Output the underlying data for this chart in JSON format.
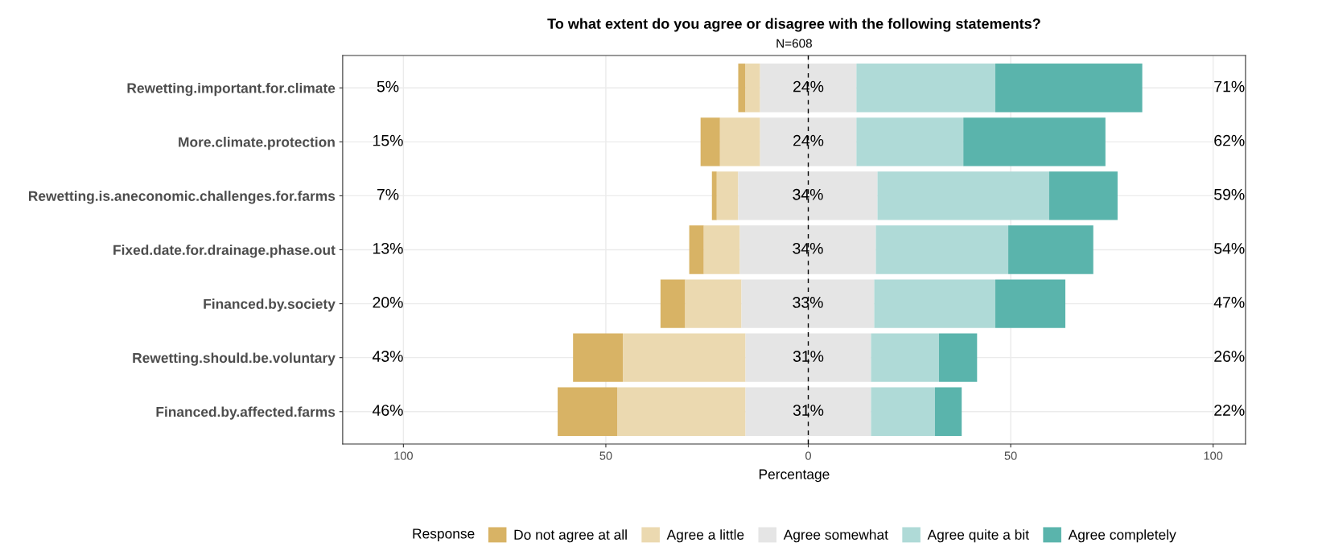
{
  "chart_data": {
    "type": "bar",
    "orientation": "horizontal",
    "title": "To what extent do you agree or disagree with the following statements?",
    "subtitle": "N=608",
    "xlabel": "Percentage",
    "legend_title": "Response",
    "legend": "bottom",
    "grid": true,
    "categories": [
      "Rewetting.important.for.climate",
      "More.climate.protection",
      "Rewetting.is.aneconomic.challenges.for.farms",
      "Fixed.date.for.drainage.phase.out",
      "Financed.by.society",
      "Rewetting.should.be.voluntary",
      "Financed.by.affected.farms"
    ],
    "series": [
      {
        "name": "Do not agree at all",
        "color": "#d8b365",
        "base": [
          -17.3,
          -26.6,
          -23.8,
          -29.4,
          -36.5,
          -58.1,
          -61.9
        ],
        "values": [
          1.8,
          4.8,
          1.2,
          3.6,
          6.1,
          12.3,
          14.7
        ]
      },
      {
        "name": "Agree a little",
        "color": "#ebd9b0",
        "base": [
          -15.5,
          -21.8,
          -22.6,
          -25.8,
          -30.4,
          -45.8,
          -47.2
        ],
        "values": [
          3.6,
          9.9,
          5.3,
          8.9,
          13.9,
          30.3,
          31.7
        ]
      },
      {
        "name": "Agree somewhat",
        "color": "#e5e5e5",
        "base": [
          -11.9,
          -11.9,
          -17.3,
          -16.9,
          -16.5,
          -15.5,
          -15.5
        ],
        "values": [
          23.8,
          23.8,
          34.4,
          33.6,
          32.8,
          31.0,
          31.0
        ],
        "value_labels": [
          "24%",
          "24%",
          "34%",
          "34%",
          "33%",
          "31%",
          "31%"
        ]
      },
      {
        "name": "Agree quite a bit",
        "color": "#afdad7",
        "base": [
          11.9,
          11.9,
          17.1,
          16.7,
          16.3,
          15.5,
          15.5
        ],
        "values": [
          34.3,
          26.4,
          42.4,
          32.7,
          29.9,
          16.8,
          15.8
        ]
      },
      {
        "name": "Agree completely",
        "color": "#5ab4ac",
        "base": [
          46.2,
          38.3,
          59.5,
          49.4,
          46.2,
          32.3,
          31.3
        ],
        "values": [
          36.3,
          35.1,
          16.9,
          21.0,
          17.3,
          9.4,
          6.6
        ]
      }
    ],
    "annotations": [
      "5%",
      "15%",
      "7%",
      "13%",
      "20%",
      "43%",
      "46%",
      "71%",
      "62%",
      "59%",
      "54%",
      "47%",
      "26%",
      "22%"
    ],
    "xlim": [
      -115,
      108
    ],
    "xticks": [
      {
        "value": -100,
        "label": "100"
      },
      {
        "value": -50,
        "label": "50"
      },
      0,
      50,
      100
    ],
    "ref_lines": [
      {
        "axis": "x",
        "value": 0,
        "color": "#000000",
        "line_style": "dashed"
      }
    ]
  }
}
